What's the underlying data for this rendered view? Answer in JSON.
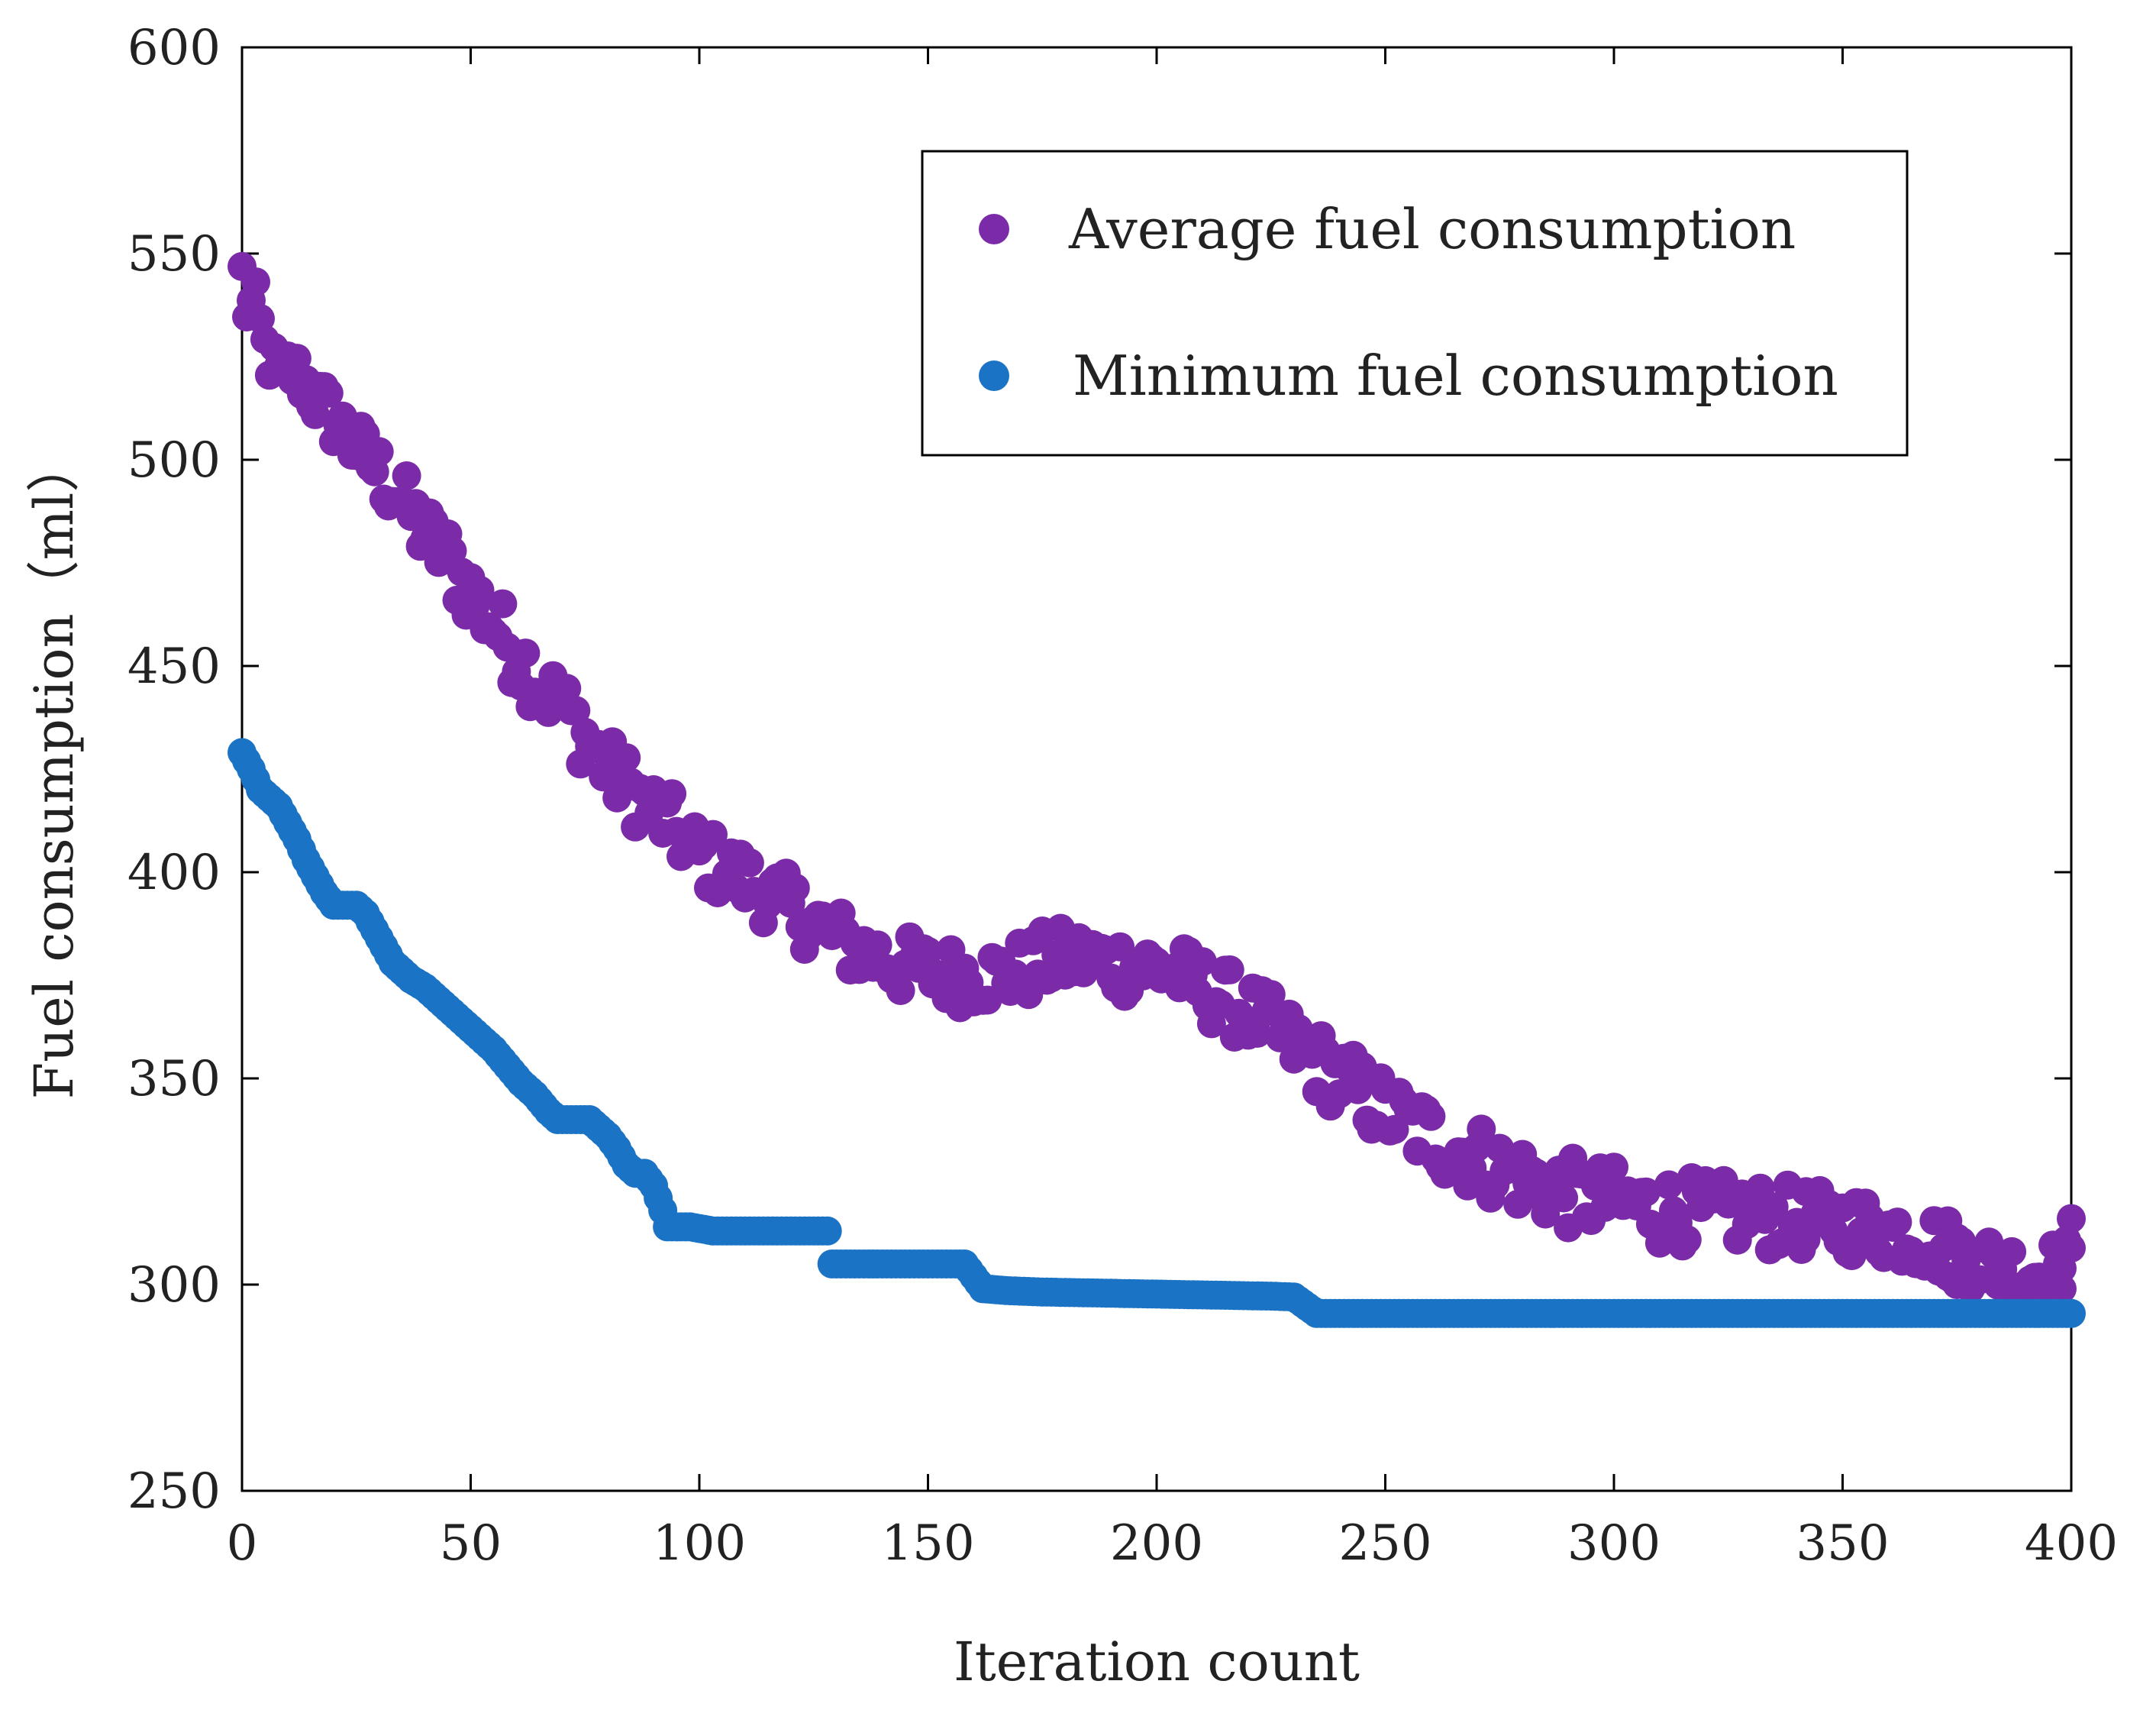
{
  "chart_data": {
    "type": "scatter",
    "title": "",
    "xlabel": "Iteration count",
    "ylabel": "Fuel consumption（ml）",
    "xlim": [
      0,
      400
    ],
    "ylim": [
      250,
      600
    ],
    "xticks": [
      "0",
      "50",
      "100",
      "150",
      "200",
      "250",
      "300",
      "350",
      "400"
    ],
    "yticks": [
      "250",
      "300",
      "350",
      "400",
      "450",
      "500",
      "550",
      "600"
    ],
    "grid": false,
    "legend_position": "top-right",
    "series": [
      {
        "name": "Average fuel consumption",
        "color": "#7b2ba8",
        "anchors": [
          [
            0,
            545
          ],
          [
            1,
            537
          ],
          [
            3,
            537
          ],
          [
            5,
            527
          ],
          [
            8,
            520
          ],
          [
            10,
            522
          ],
          [
            13,
            520
          ],
          [
            16,
            515
          ],
          [
            20,
            510
          ],
          [
            25,
            503
          ],
          [
            30,
            497
          ],
          [
            35,
            490
          ],
          [
            40,
            482
          ],
          [
            45,
            476
          ],
          [
            50,
            468
          ],
          [
            55,
            460
          ],
          [
            60,
            453
          ],
          [
            65,
            446
          ],
          [
            70,
            440
          ],
          [
            75,
            433
          ],
          [
            80,
            425
          ],
          [
            85,
            420
          ],
          [
            90,
            415
          ],
          [
            95,
            410
          ],
          [
            100,
            404
          ],
          [
            105,
            401
          ],
          [
            110,
            398
          ],
          [
            115,
            395
          ],
          [
            120,
            391
          ],
          [
            125,
            388
          ],
          [
            130,
            384
          ],
          [
            135,
            381
          ],
          [
            140,
            379
          ],
          [
            145,
            377
          ],
          [
            150,
            376
          ],
          [
            155,
            375
          ],
          [
            160,
            375
          ],
          [
            165,
            375
          ],
          [
            170,
            376
          ],
          [
            175,
            378
          ],
          [
            180,
            379
          ],
          [
            185,
            379
          ],
          [
            190,
            378
          ],
          [
            195,
            377
          ],
          [
            200,
            377
          ],
          [
            205,
            375
          ],
          [
            210,
            372
          ],
          [
            215,
            369
          ],
          [
            220,
            366
          ],
          [
            225,
            362
          ],
          [
            230,
            358
          ],
          [
            235,
            354
          ],
          [
            240,
            350
          ],
          [
            245,
            346
          ],
          [
            250,
            342
          ],
          [
            255,
            339
          ],
          [
            260,
            336
          ],
          [
            265,
            333
          ],
          [
            270,
            331
          ],
          [
            275,
            328
          ],
          [
            280,
            326
          ],
          [
            285,
            324
          ],
          [
            290,
            322
          ],
          [
            295,
            321
          ],
          [
            300,
            320
          ],
          [
            305,
            319
          ],
          [
            310,
            318
          ],
          [
            315,
            318
          ],
          [
            320,
            317
          ],
          [
            325,
            317
          ],
          [
            330,
            317
          ],
          [
            335,
            316
          ],
          [
            340,
            316
          ],
          [
            345,
            315
          ],
          [
            350,
            315
          ],
          [
            355,
            314
          ],
          [
            360,
            313
          ],
          [
            365,
            312
          ],
          [
            370,
            310
          ],
          [
            375,
            308
          ],
          [
            380,
            306
          ],
          [
            385,
            304
          ],
          [
            390,
            303
          ],
          [
            395,
            303
          ],
          [
            400,
            304
          ]
        ],
        "spread": [
          [
            0,
            6
          ],
          [
            50,
            9
          ],
          [
            100,
            8
          ],
          [
            150,
            8
          ],
          [
            200,
            8
          ],
          [
            250,
            9
          ],
          [
            300,
            9
          ],
          [
            350,
            8
          ],
          [
            400,
            8
          ]
        ],
        "highlight_points": [
          [
            400,
            316
          ],
          [
            398,
            299
          ],
          [
            397,
            305
          ],
          [
            373,
            302
          ],
          [
            375,
            300
          ],
          [
            342,
            311
          ]
        ]
      },
      {
        "name": "Minimum fuel consumption",
        "color": "#1a73c4",
        "anchors": [
          [
            0,
            429
          ],
          [
            2,
            425
          ],
          [
            4,
            420
          ],
          [
            6,
            418
          ],
          [
            8,
            416
          ],
          [
            10,
            412
          ],
          [
            12,
            408
          ],
          [
            14,
            403
          ],
          [
            16,
            399
          ],
          [
            18,
            395
          ],
          [
            20,
            392
          ],
          [
            22,
            392
          ],
          [
            25,
            392
          ],
          [
            27,
            390
          ],
          [
            29,
            386
          ],
          [
            31,
            382
          ],
          [
            33,
            378
          ],
          [
            35,
            376
          ],
          [
            37,
            374
          ],
          [
            40,
            372
          ],
          [
            43,
            369
          ],
          [
            46,
            366
          ],
          [
            49,
            363
          ],
          [
            52,
            360
          ],
          [
            55,
            357
          ],
          [
            58,
            353
          ],
          [
            61,
            349
          ],
          [
            64,
            346
          ],
          [
            67,
            342
          ],
          [
            69,
            340
          ],
          [
            72,
            340
          ],
          [
            76,
            340
          ],
          [
            78,
            338
          ],
          [
            80,
            336
          ],
          [
            82,
            333
          ],
          [
            84,
            329
          ],
          [
            86,
            327
          ],
          [
            88,
            327
          ],
          [
            90,
            324
          ],
          [
            92,
            318
          ],
          [
            93,
            314
          ],
          [
            98,
            314
          ],
          [
            103,
            313
          ],
          [
            108,
            313
          ],
          [
            113,
            313
          ],
          [
            118,
            313
          ],
          [
            123,
            313
          ],
          [
            128,
            313
          ],
          [
            129,
            305
          ],
          [
            133,
            305
          ],
          [
            138,
            305
          ],
          [
            143,
            305
          ],
          [
            148,
            305
          ],
          [
            153,
            305
          ],
          [
            158,
            305
          ],
          [
            162,
            299
          ],
          [
            168,
            298.5
          ],
          [
            175,
            298.2
          ],
          [
            185,
            298
          ],
          [
            195,
            297.8
          ],
          [
            205,
            297.6
          ],
          [
            215,
            297.4
          ],
          [
            225,
            297.2
          ],
          [
            230,
            297
          ],
          [
            235,
            293
          ],
          [
            250,
            293
          ],
          [
            275,
            293
          ],
          [
            300,
            293
          ],
          [
            325,
            293
          ],
          [
            350,
            293
          ],
          [
            375,
            293
          ],
          [
            400,
            293
          ]
        ]
      }
    ]
  }
}
